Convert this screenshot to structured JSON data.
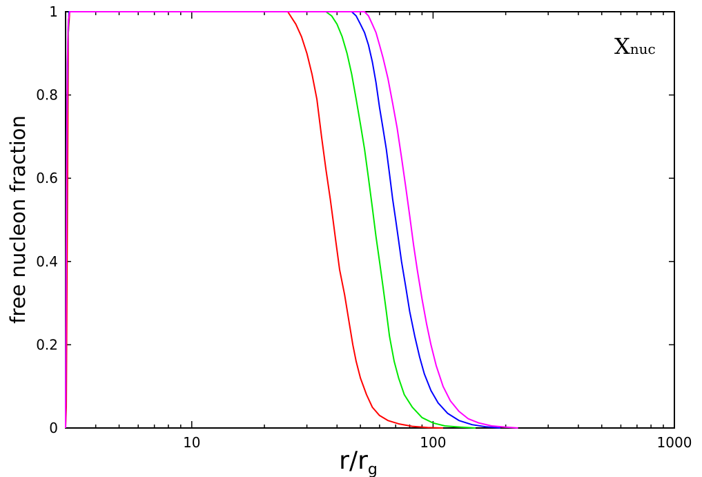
{
  "chart_data": {
    "type": "line",
    "xscale": "log",
    "xlim": [
      3,
      1000
    ],
    "ylim": [
      0,
      1
    ],
    "xlabel": "r/r",
    "xlabel_sub": "g",
    "ylabel": "free nucleon fraction",
    "annotation": "X",
    "annotation_sub": "nuc",
    "annotation_position": "top-right",
    "grid": false,
    "x_ticks": [
      {
        "value": 10,
        "label": "10"
      },
      {
        "value": 100,
        "label": "100"
      },
      {
        "value": 1000,
        "label": "1000"
      }
    ],
    "y_ticks": [
      {
        "value": 0,
        "label": "0"
      },
      {
        "value": 0.2,
        "label": "0.2"
      },
      {
        "value": 0.4,
        "label": "0.4"
      },
      {
        "value": 0.6,
        "label": "0.6"
      },
      {
        "value": 0.8,
        "label": "0.8"
      },
      {
        "value": 1,
        "label": "1"
      }
    ],
    "series": [
      {
        "color": "#ff0000",
        "points": [
          [
            3.0,
            0
          ],
          [
            3.02,
            0.05
          ],
          [
            3.05,
            0.5
          ],
          [
            3.08,
            0.95
          ],
          [
            3.12,
            1.0
          ],
          [
            22,
            1.0
          ],
          [
            25,
            1.0
          ],
          [
            27,
            0.97
          ],
          [
            28.5,
            0.94
          ],
          [
            30,
            0.9
          ],
          [
            31.5,
            0.85
          ],
          [
            33,
            0.79
          ],
          [
            34.5,
            0.7
          ],
          [
            36,
            0.62
          ],
          [
            37.5,
            0.55
          ],
          [
            38.5,
            0.5
          ],
          [
            39.5,
            0.45
          ],
          [
            41,
            0.38
          ],
          [
            43,
            0.32
          ],
          [
            45,
            0.25
          ],
          [
            46.5,
            0.2
          ],
          [
            48,
            0.16
          ],
          [
            50,
            0.12
          ],
          [
            53,
            0.08
          ],
          [
            56,
            0.05
          ],
          [
            60,
            0.03
          ],
          [
            65,
            0.018
          ],
          [
            72,
            0.01
          ],
          [
            82,
            0.004
          ],
          [
            95,
            0.001
          ],
          [
            110,
            0
          ]
        ]
      },
      {
        "color": "#00e800",
        "points": [
          [
            3.0,
            0
          ],
          [
            3.01,
            0.3
          ],
          [
            3.03,
            0.65
          ],
          [
            3.06,
            0.9
          ],
          [
            3.1,
            1.0
          ],
          [
            36,
            1.0
          ],
          [
            38,
            0.99
          ],
          [
            40,
            0.97
          ],
          [
            42,
            0.94
          ],
          [
            44,
            0.9
          ],
          [
            46,
            0.85
          ],
          [
            48,
            0.79
          ],
          [
            50,
            0.73
          ],
          [
            52,
            0.67
          ],
          [
            54,
            0.6
          ],
          [
            56,
            0.53
          ],
          [
            58,
            0.46
          ],
          [
            60,
            0.4
          ],
          [
            62,
            0.34
          ],
          [
            64,
            0.28
          ],
          [
            66,
            0.22
          ],
          [
            69,
            0.16
          ],
          [
            72,
            0.12
          ],
          [
            76,
            0.08
          ],
          [
            82,
            0.05
          ],
          [
            90,
            0.025
          ],
          [
            100,
            0.012
          ],
          [
            112,
            0.005
          ],
          [
            130,
            0.002
          ],
          [
            150,
            0
          ]
        ]
      },
      {
        "color": "#0000ff",
        "points": [
          [
            3.0,
            0
          ],
          [
            3.01,
            0.28
          ],
          [
            3.04,
            0.75
          ],
          [
            3.07,
            0.95
          ],
          [
            3.1,
            1.0
          ],
          [
            46,
            1.0
          ],
          [
            48,
            0.99
          ],
          [
            50,
            0.97
          ],
          [
            52,
            0.95
          ],
          [
            54,
            0.92
          ],
          [
            56,
            0.88
          ],
          [
            58,
            0.83
          ],
          [
            60,
            0.77
          ],
          [
            62,
            0.72
          ],
          [
            64,
            0.67
          ],
          [
            66,
            0.61
          ],
          [
            68,
            0.55
          ],
          [
            70,
            0.5
          ],
          [
            72,
            0.45
          ],
          [
            74,
            0.4
          ],
          [
            77,
            0.34
          ],
          [
            80,
            0.28
          ],
          [
            84,
            0.22
          ],
          [
            88,
            0.17
          ],
          [
            92,
            0.13
          ],
          [
            98,
            0.09
          ],
          [
            105,
            0.06
          ],
          [
            115,
            0.035
          ],
          [
            128,
            0.018
          ],
          [
            145,
            0.008
          ],
          [
            165,
            0.003
          ],
          [
            190,
            0
          ]
        ]
      },
      {
        "color": "#ff00ff",
        "points": [
          [
            3.0,
            0
          ],
          [
            3.02,
            0.5
          ],
          [
            3.05,
            0.87
          ],
          [
            3.08,
            0.98
          ],
          [
            3.12,
            1.0
          ],
          [
            52,
            1.0
          ],
          [
            54,
            0.99
          ],
          [
            56,
            0.97
          ],
          [
            58,
            0.95
          ],
          [
            60,
            0.92
          ],
          [
            62,
            0.89
          ],
          [
            65,
            0.84
          ],
          [
            68,
            0.78
          ],
          [
            71,
            0.72
          ],
          [
            74,
            0.65
          ],
          [
            77,
            0.58
          ],
          [
            80,
            0.51
          ],
          [
            83,
            0.44
          ],
          [
            86,
            0.38
          ],
          [
            90,
            0.31
          ],
          [
            94,
            0.25
          ],
          [
            98,
            0.2
          ],
          [
            103,
            0.15
          ],
          [
            110,
            0.1
          ],
          [
            118,
            0.065
          ],
          [
            128,
            0.04
          ],
          [
            140,
            0.022
          ],
          [
            155,
            0.012
          ],
          [
            175,
            0.005
          ],
          [
            200,
            0.002
          ],
          [
            225,
            0
          ]
        ]
      }
    ]
  }
}
